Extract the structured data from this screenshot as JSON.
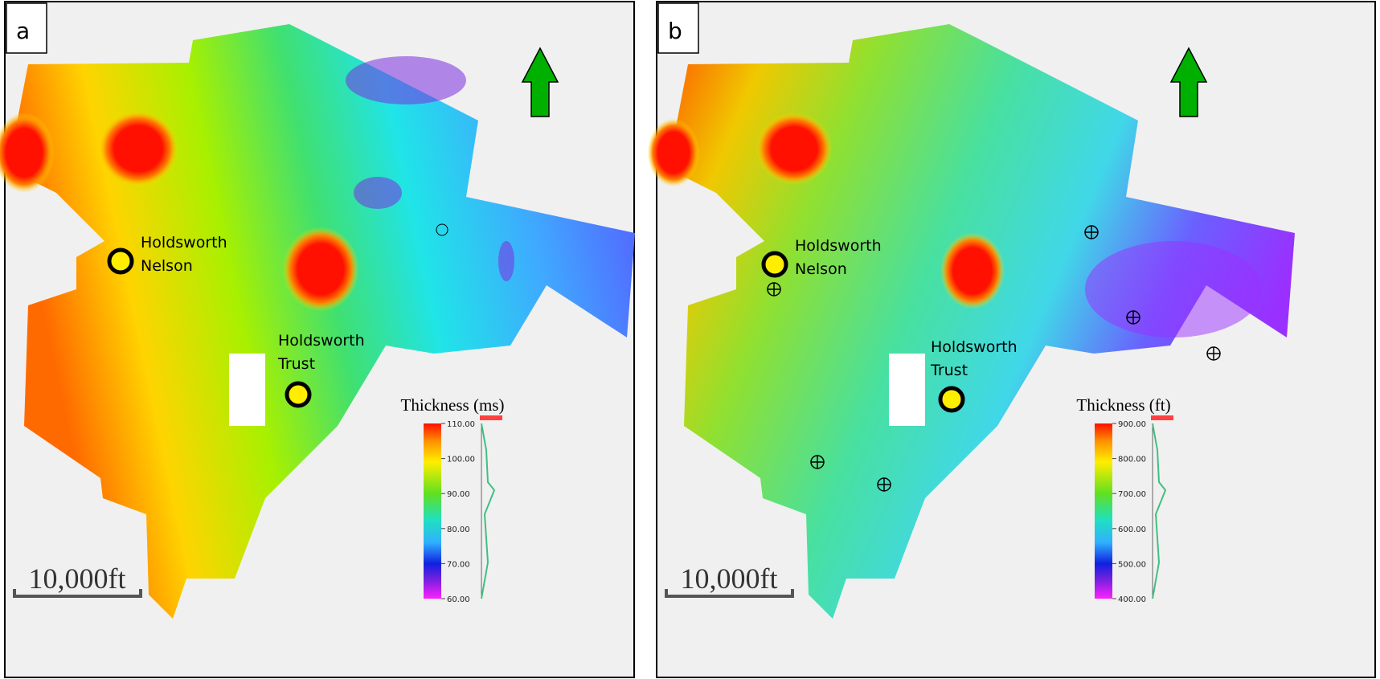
{
  "panels": [
    {
      "label": "a",
      "wells": [
        {
          "lines": [
            "Holdsworth",
            "Nelson"
          ]
        },
        {
          "lines": [
            "Holdsworth",
            "Trust"
          ]
        }
      ],
      "colorbar": {
        "title": "Thickness (ms)",
        "ticks": [
          "110.00",
          "100.00",
          "90.00",
          "80.00",
          "70.00",
          "60.00"
        ]
      },
      "scale": "10,000ft"
    },
    {
      "label": "b",
      "wells": [
        {
          "lines": [
            "Holdsworth",
            "Nelson"
          ]
        },
        {
          "lines": [
            "Holdsworth",
            "Trust"
          ]
        }
      ],
      "colorbar": {
        "title": "Thickness (ft)",
        "ticks": [
          "900.00",
          "800.00",
          "700.00",
          "600.00",
          "500.00",
          "400.00"
        ]
      },
      "scale": "10,000ft"
    }
  ]
}
